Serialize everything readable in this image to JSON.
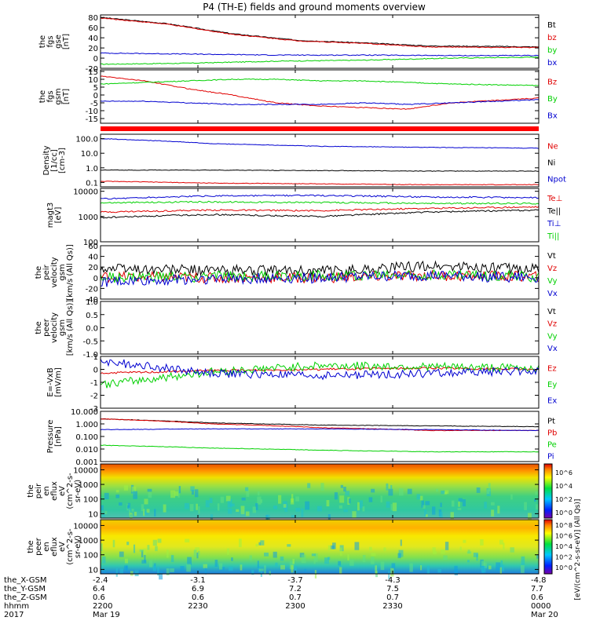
{
  "title": "P4 (TH-E) fields and ground moments overview",
  "colors": {
    "black": "#000000",
    "red": "#e00000",
    "green": "#00d000",
    "blue": "#0000d0"
  },
  "chart_data": [
    {
      "id": "fgs-gse",
      "type": "line",
      "ylabel": [
        "the",
        "fgs",
        "gse",
        "[nT]"
      ],
      "ylim": [
        -20,
        85
      ],
      "yticks": [
        -20,
        0,
        20,
        40,
        60,
        80
      ],
      "series": [
        {
          "name": "Bt",
          "color": "black",
          "x": [
            0,
            0.15,
            0.3,
            0.45,
            0.6,
            0.75,
            0.9,
            1
          ],
          "y": [
            80,
            68,
            48,
            35,
            30,
            24,
            23,
            22
          ]
        },
        {
          "name": "bz",
          "color": "red",
          "x": [
            0,
            0.15,
            0.3,
            0.45,
            0.6,
            0.75,
            0.9,
            1
          ],
          "y": [
            79,
            67,
            47,
            34,
            29,
            22,
            21,
            21
          ]
        },
        {
          "name": "by",
          "color": "green",
          "x": [
            0,
            0.2,
            0.4,
            0.6,
            0.8,
            1
          ],
          "y": [
            -12,
            -10,
            -6,
            -4,
            0,
            2
          ]
        },
        {
          "name": "bx",
          "color": "blue",
          "x": [
            0,
            0.2,
            0.4,
            0.6,
            0.8,
            1
          ],
          "y": [
            10,
            8,
            6,
            6,
            5,
            5
          ]
        }
      ]
    },
    {
      "id": "fgs-gsm",
      "type": "line",
      "ylabel": [
        "the",
        "fgs",
        "gsm",
        "[nT]"
      ],
      "ylim": [
        -18,
        16
      ],
      "yticks": [
        -15,
        -10,
        -5,
        0,
        5,
        10,
        15
      ],
      "series": [
        {
          "name": "Bz",
          "color": "red",
          "x": [
            0,
            0.1,
            0.2,
            0.3,
            0.4,
            0.5,
            0.6,
            0.7,
            0.8,
            1
          ],
          "y": [
            12,
            9,
            4,
            0,
            -5,
            -7,
            -8,
            -9,
            -5,
            -2
          ]
        },
        {
          "name": "By",
          "color": "green",
          "x": [
            0,
            0.1,
            0.2,
            0.3,
            0.4,
            0.5,
            0.6,
            0.7,
            0.8,
            1
          ],
          "y": [
            7,
            8,
            9,
            10,
            10,
            9,
            9,
            8,
            7,
            6
          ]
        },
        {
          "name": "Bx",
          "color": "blue",
          "x": [
            0,
            0.1,
            0.2,
            0.3,
            0.4,
            0.5,
            0.6,
            0.7,
            0.8,
            1
          ],
          "y": [
            -4,
            -4,
            -5,
            -6,
            -6,
            -6,
            -5,
            -6,
            -5,
            -3
          ]
        }
      ]
    },
    {
      "id": "density",
      "type": "line",
      "log": true,
      "ylabel": [
        "Density",
        "[1/cc]",
        "[cm-3]"
      ],
      "ylim": [
        0.05,
        200
      ],
      "yticks": [
        0.1,
        1.0,
        10.0,
        100.0
      ],
      "ytick_labels": [
        "0.1",
        "1.0",
        "10.0",
        "100.0"
      ],
      "series": [
        {
          "name": "Ne",
          "color": "red",
          "x": [
            0,
            0.25,
            0.5,
            0.75,
            1
          ],
          "y": [
            0.12,
            0.09,
            0.08,
            0.07,
            0.07
          ]
        },
        {
          "name": "Ni",
          "color": "black",
          "x": [
            0,
            0.25,
            0.5,
            0.75,
            1
          ],
          "y": [
            0.7,
            0.7,
            0.65,
            0.6,
            0.6
          ]
        },
        {
          "name": "Npot",
          "color": "blue",
          "x": [
            0,
            0.25,
            0.5,
            0.75,
            1
          ],
          "y": [
            100,
            45,
            30,
            25,
            22
          ]
        }
      ]
    },
    {
      "id": "temperature",
      "type": "line",
      "log": true,
      "ylabel": [
        "magt3",
        "[eV]"
      ],
      "ylim": [
        100,
        13000
      ],
      "yticks": [
        100,
        1000,
        10000
      ],
      "ytick_labels": [
        "100",
        "1000",
        "10000"
      ],
      "series": [
        {
          "name": "Te⊥",
          "color": "red",
          "x": [
            0,
            0.25,
            0.5,
            0.75,
            1
          ],
          "y": [
            1500,
            1800,
            1700,
            2100,
            2400
          ]
        },
        {
          "name": "Te||",
          "color": "black",
          "x": [
            0,
            0.25,
            0.5,
            0.75,
            1
          ],
          "y": [
            900,
            1200,
            1000,
            1500,
            1800
          ]
        },
        {
          "name": "Ti⊥",
          "color": "blue",
          "x": [
            0,
            0.25,
            0.5,
            0.75,
            1
          ],
          "y": [
            5000,
            6500,
            6800,
            6000,
            5500
          ]
        },
        {
          "name": "Ti||",
          "color": "green",
          "x": [
            0,
            0.25,
            0.5,
            0.75,
            1
          ],
          "y": [
            3500,
            3800,
            3600,
            3300,
            3300
          ]
        }
      ]
    },
    {
      "id": "peir-velocity",
      "type": "line",
      "ylabel": [
        "the",
        "peir",
        "velocity",
        "gsm",
        "[km/s (All Qs)]"
      ],
      "ylim": [
        -40,
        60
      ],
      "yticks": [
        -40,
        -20,
        0,
        20,
        40,
        60
      ],
      "series": [
        {
          "name": "Vt",
          "color": "black",
          "x": [
            0,
            0.25,
            0.5,
            0.75,
            1
          ],
          "y": [
            18,
            14,
            12,
            22,
            16
          ]
        },
        {
          "name": "Vz",
          "color": "red",
          "x": [
            0,
            0.25,
            0.5,
            0.75,
            1
          ],
          "y": [
            2,
            0,
            0,
            4,
            2
          ]
        },
        {
          "name": "Vy",
          "color": "green",
          "x": [
            0,
            0.25,
            0.5,
            0.75,
            1
          ],
          "y": [
            0,
            2,
            4,
            6,
            2
          ]
        },
        {
          "name": "Vx",
          "color": "blue",
          "x": [
            0,
            0.25,
            0.5,
            0.75,
            1
          ],
          "y": [
            -8,
            -2,
            0,
            4,
            0
          ]
        }
      ]
    },
    {
      "id": "peer-velocity",
      "type": "line",
      "ylabel": [
        "the",
        "peer",
        "velocity",
        "gsm",
        "[km/s (All Qs)]"
      ],
      "ylim": [
        -1.0,
        1.0
      ],
      "yticks": [
        -1.0,
        -0.5,
        0.0,
        0.5,
        1.0
      ],
      "ytick_labels": [
        "-1.0",
        "-0.5",
        "0.0",
        "0.5",
        "1.0"
      ],
      "series": [
        {
          "name": "Vt",
          "color": "black",
          "x": [],
          "y": []
        },
        {
          "name": "Vz",
          "color": "red",
          "x": [],
          "y": []
        },
        {
          "name": "Vy",
          "color": "green",
          "x": [],
          "y": []
        },
        {
          "name": "Vx",
          "color": "blue",
          "x": [],
          "y": []
        }
      ]
    },
    {
      "id": "efield",
      "type": "line",
      "ylabel": [
        "E=-VxB",
        "[mV/m]"
      ],
      "ylim": [
        -3,
        1
      ],
      "yticks": [
        -3,
        -2,
        -1,
        0,
        1
      ],
      "series": [
        {
          "name": "Ez",
          "color": "red",
          "x": [
            0,
            0.25,
            0.5,
            0.75,
            1
          ],
          "y": [
            -0.3,
            -0.1,
            0,
            0.1,
            0
          ]
        },
        {
          "name": "Ey",
          "color": "green",
          "x": [
            0,
            0.1,
            0.25,
            0.5,
            0.75,
            1
          ],
          "y": [
            -1.2,
            -0.8,
            -0.2,
            0.3,
            0.2,
            0.1
          ]
        },
        {
          "name": "Ex",
          "color": "blue",
          "x": [
            0,
            0.1,
            0.25,
            0.5,
            0.75,
            1
          ],
          "y": [
            0.6,
            0.3,
            -0.3,
            -0.5,
            -0.3,
            -0.1
          ]
        }
      ]
    },
    {
      "id": "pressure",
      "type": "line",
      "log": true,
      "ylabel": [
        "Pressure",
        "[nPa]"
      ],
      "ylim": [
        0.001,
        10
      ],
      "yticks": [
        0.001,
        0.01,
        0.1,
        1,
        10
      ],
      "ytick_labels": [
        "0.001",
        "0.010",
        "0.100",
        "1.000",
        "10.000"
      ],
      "series": [
        {
          "name": "Pt",
          "color": "black",
          "x": [
            0,
            0.25,
            0.5,
            0.75,
            1
          ],
          "y": [
            2.5,
            1.2,
            0.8,
            0.7,
            0.6
          ]
        },
        {
          "name": "Pb",
          "color": "red",
          "x": [
            0,
            0.25,
            0.5,
            0.75,
            1
          ],
          "y": [
            2.5,
            1.0,
            0.5,
            0.3,
            0.3
          ]
        },
        {
          "name": "Pe",
          "color": "green",
          "x": [
            0,
            0.25,
            0.5,
            0.75,
            1
          ],
          "y": [
            0.02,
            0.012,
            0.008,
            0.006,
            0.006
          ]
        },
        {
          "name": "Pi",
          "color": "blue",
          "x": [
            0,
            0.25,
            0.5,
            0.75,
            1
          ],
          "y": [
            0.35,
            0.4,
            0.4,
            0.35,
            0.3
          ]
        }
      ]
    },
    {
      "id": "peir-spectrogram",
      "type": "heatmap",
      "ylabel": [
        "the",
        "peir",
        "en",
        "eflux",
        "eV",
        "(cm^2-s-",
        "sr-eV)"
      ],
      "ylim": [
        5,
        25000
      ],
      "yticks": [
        10,
        100,
        1000,
        10000
      ],
      "ytick_labels": [
        "10",
        "100",
        "1000",
        "10000"
      ]
    },
    {
      "id": "peer-spectrogram",
      "type": "heatmap",
      "ylabel": [
        "the",
        "peer",
        "en",
        "eflux",
        "eV",
        "(cm^2-s-",
        "sr-eV)"
      ],
      "ylim": [
        5,
        25000
      ],
      "yticks": [
        10,
        100,
        1000,
        10000
      ],
      "ytick_labels": [
        "10",
        "100",
        "1000",
        "10000"
      ]
    }
  ],
  "colorbar": {
    "label": "[eV/(cm^2-s-sr-eV)] (All Qs)]",
    "ticks_top": [
      "10^6",
      "10^4",
      "10^2",
      "10^0"
    ],
    "ticks_bottom": [
      "10^8",
      "10^6",
      "10^4",
      "10^2",
      "10^0"
    ]
  },
  "xaxis": {
    "row_labels": [
      "the_X-GSM",
      "the_Y-GSM",
      "the_Z-GSM",
      "hhmm",
      "2017"
    ],
    "ticks": [
      {
        "x": 0,
        "vals": [
          "-2.4",
          "6.4",
          "0.6",
          "2200",
          "Mar 19"
        ]
      },
      {
        "x": 0.2222,
        "vals": [
          "-3.1",
          "6.9",
          "0.6",
          "2230",
          ""
        ]
      },
      {
        "x": 0.4444,
        "vals": [
          "-3.7",
          "7.2",
          "0.7",
          "2300",
          ""
        ]
      },
      {
        "x": 0.6667,
        "vals": [
          "-4.3",
          "7.5",
          "0.7",
          "2330",
          ""
        ]
      },
      {
        "x": 1,
        "vals": [
          "-4.8",
          "7.7",
          "0.6",
          "0000",
          "Mar 20"
        ]
      }
    ]
  }
}
